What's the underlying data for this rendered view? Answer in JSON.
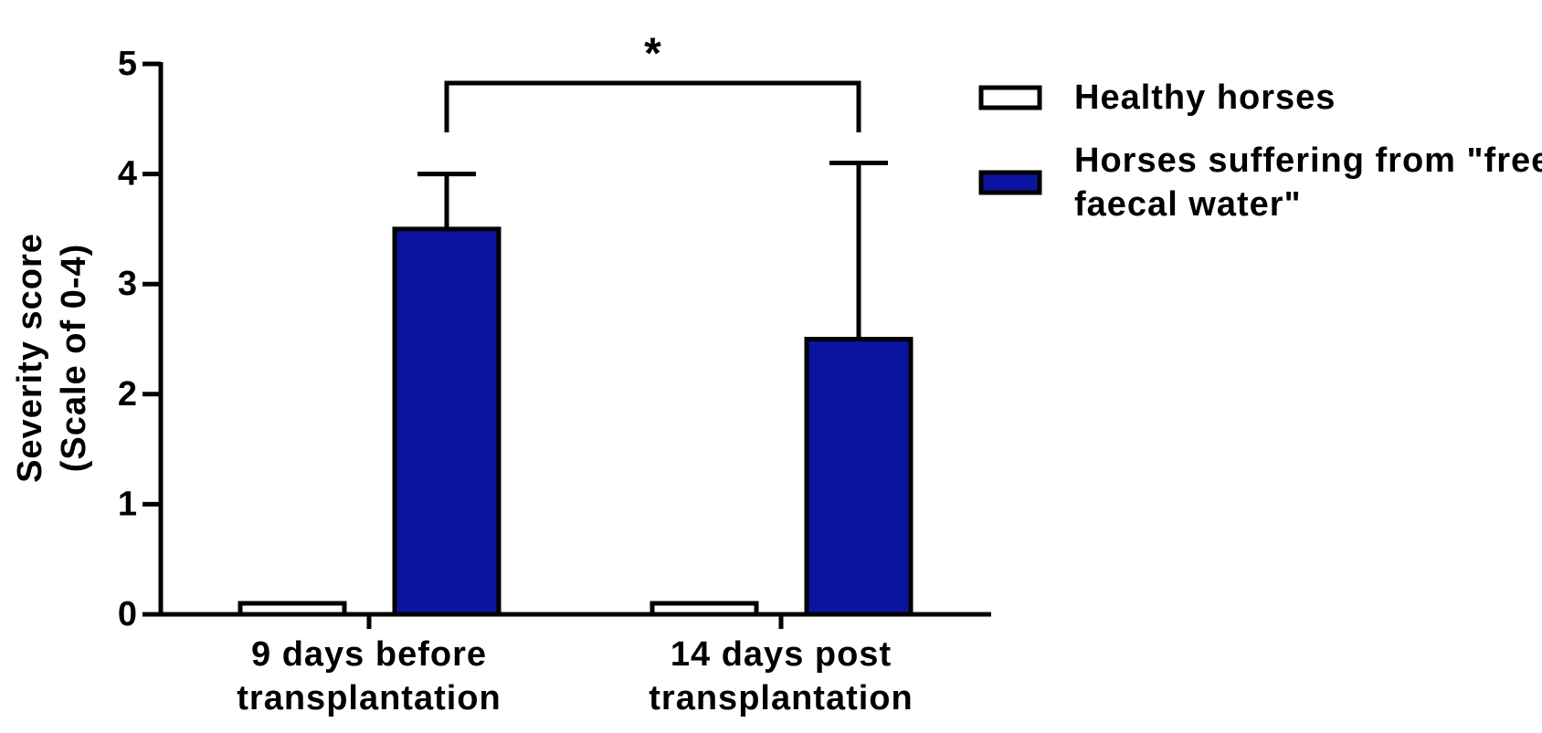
{
  "chart_data": {
    "type": "bar",
    "categories": [
      "9 days before transplantation",
      "14 days post transplantation"
    ],
    "series": [
      {
        "name": "Healthy horses",
        "color": "#ffffff",
        "values": [
          0.1,
          0.1
        ]
      },
      {
        "name": "Horses suffering from \"free faecal water\"",
        "color": "#0a14a0",
        "values": [
          3.5,
          2.5
        ],
        "errors": [
          0.5,
          1.6
        ]
      }
    ],
    "ylabel": "Severity score (Scale of 0-4)",
    "ylim": [
      0,
      5
    ],
    "yticks": [
      0,
      1,
      2,
      3,
      4,
      5
    ],
    "annotations": [
      "*"
    ]
  }
}
